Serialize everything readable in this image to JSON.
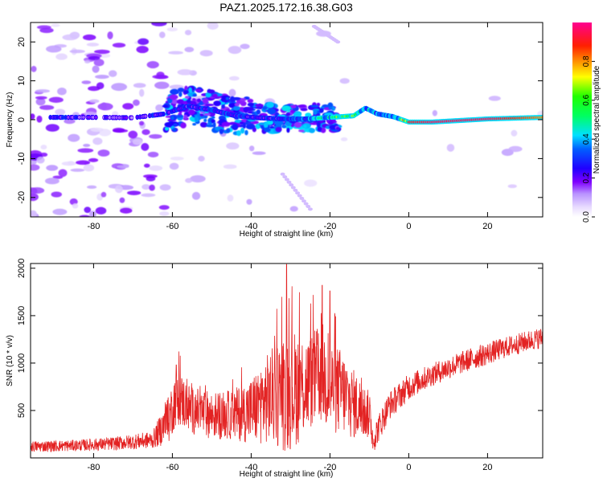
{
  "title": "PAZ1.2025.172.16.38.G03",
  "chart_data": [
    {
      "type": "heatmap",
      "xlabel": "Height of straight line (km)",
      "ylabel": "Frequency (Hz)",
      "xlim": [
        -96,
        34
      ],
      "ylim": [
        -25,
        25
      ],
      "xticks": [
        -80,
        -60,
        -40,
        -20,
        0,
        20
      ],
      "yticks": [
        -20,
        -10,
        0,
        10,
        20
      ],
      "colorbar": {
        "label": "Normalized spectral amplitude",
        "range": [
          0,
          1
        ],
        "ticks": [
          "0.0",
          "0.2",
          "0.4",
          "0.6",
          "0.8"
        ],
        "tick_values": [
          0,
          0.2,
          0.4,
          0.6,
          0.8
        ],
        "colors": [
          "#ffffff",
          "#c8b4ff",
          "#7f00ff",
          "#0000ff",
          "#00ffff",
          "#00ff00",
          "#ffff00",
          "#ff8000",
          "#ff0000",
          "#ff00aa"
        ]
      },
      "ridge": {
        "description_values": "dominant frequency (Hz) vs height (km)",
        "x": [
          -88,
          -80,
          -70,
          -62,
          -56,
          -50,
          -44,
          -38,
          -32,
          -26,
          -20,
          -14,
          -11,
          -8,
          -4,
          0,
          6,
          20,
          34
        ],
        "frequency": [
          0.6,
          0.6,
          0.5,
          1.5,
          3.5,
          2.5,
          1.0,
          0.5,
          0.2,
          0.2,
          0.6,
          1.0,
          3.0,
          1.5,
          0.8,
          -0.6,
          -0.6,
          0.2,
          0.6
        ],
        "amplitude": [
          0.25,
          0.2,
          0.18,
          0.3,
          0.25,
          0.3,
          0.3,
          0.25,
          0.3,
          0.35,
          0.6,
          0.65,
          0.45,
          0.4,
          0.35,
          0.9,
          0.95,
          0.95,
          0.8
        ]
      }
    },
    {
      "type": "line",
      "xlabel": "Height of straight line (km)",
      "ylabel": "SNR (10 * v/v)",
      "xlim": [
        -96,
        34
      ],
      "ylim": [
        0,
        2050
      ],
      "xticks": [
        -80,
        -60,
        -40,
        -20,
        0,
        20
      ],
      "yticks": [
        500,
        1000,
        1500,
        2000
      ],
      "color": "#e32222",
      "envelope": {
        "x": [
          -96,
          -85,
          -75,
          -65,
          -61,
          -59,
          -55,
          -50,
          -45,
          -40,
          -35,
          -31,
          -28,
          -25,
          -22,
          -20,
          -17,
          -15,
          -10,
          -9,
          -5,
          0,
          5,
          10,
          15,
          20,
          25,
          30,
          34
        ],
        "mean": [
          120,
          130,
          150,
          190,
          400,
          650,
          500,
          450,
          450,
          500,
          650,
          700,
          750,
          800,
          900,
          750,
          700,
          600,
          450,
          200,
          550,
          750,
          860,
          950,
          1030,
          1100,
          1170,
          1230,
          1270
        ],
        "spread": [
          60,
          60,
          70,
          90,
          250,
          300,
          250,
          250,
          260,
          350,
          500,
          650,
          600,
          500,
          550,
          500,
          450,
          400,
          250,
          150,
          150,
          140,
          120,
          120,
          120,
          120,
          110,
          110,
          110
        ]
      },
      "peaks": [
        {
          "x": -31,
          "y": 2040
        },
        {
          "x": -22,
          "y": 1820
        },
        {
          "x": -20,
          "y": 1760
        },
        {
          "x": -59,
          "y": 980
        },
        {
          "x": -9,
          "y": 150
        }
      ]
    }
  ]
}
